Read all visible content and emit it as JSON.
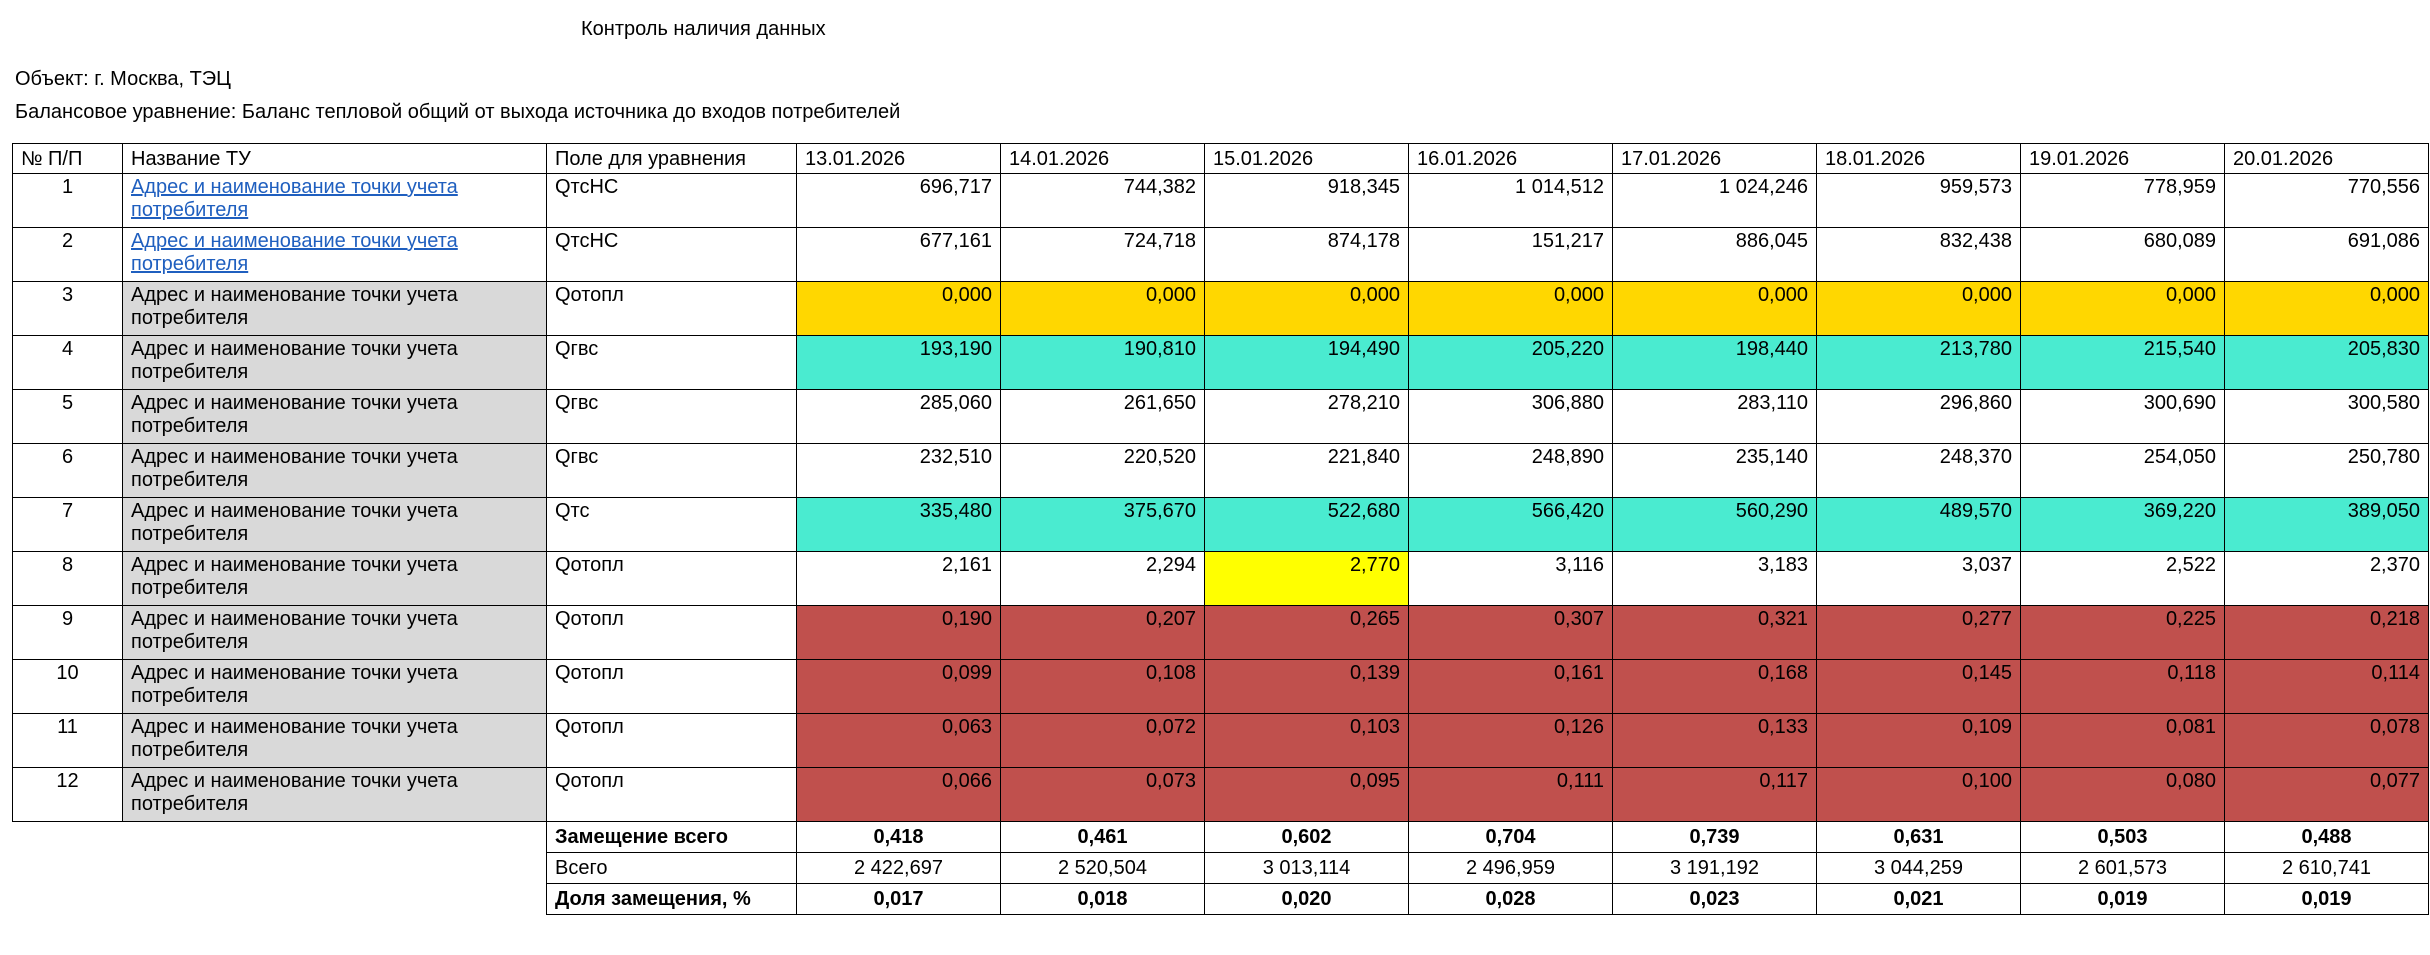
{
  "title": "Контроль наличия данных",
  "object_line": "Объект: г. Москва, ТЭЦ",
  "balance_line": "Балансовое уравнение: Баланс тепловой общий от выхода источника до входов потребителей",
  "columns": {
    "num": "№ П/П",
    "name": "Название ТУ",
    "field": "Поле для уравнения",
    "dates": [
      "13.01.2026",
      "14.01.2026",
      "15.01.2026",
      "16.01.2026",
      "17.01.2026",
      "18.01.2026",
      "19.01.2026",
      "20.01.2026"
    ]
  },
  "colors": {
    "orange": "#ffd700",
    "teal": "#4aebd0",
    "yellow": "#ffff00",
    "red": "#c0504d",
    "grey": "#d9d9d9",
    "link": "#1f5fbf"
  },
  "rows": [
    {
      "num": "1",
      "name": "Адрес и наименование точки учета потребителя",
      "link": true,
      "field": "QтсНС",
      "values": [
        "696,717",
        "744,382",
        "918,345",
        "1 014,512",
        "1 024,246",
        "959,573",
        "778,959",
        "770,556"
      ],
      "fills": [
        "",
        "",
        "",
        "",
        "",
        "",
        "",
        ""
      ]
    },
    {
      "num": "2",
      "name": "Адрес и наименование точки учета потребителя",
      "link": true,
      "field": "QтсНС",
      "values": [
        "677,161",
        "724,718",
        "874,178",
        "151,217",
        "886,045",
        "832,438",
        "680,089",
        "691,086"
      ],
      "fills": [
        "",
        "",
        "",
        "",
        "",
        "",
        "",
        ""
      ]
    },
    {
      "num": "3",
      "name": "Адрес и наименование точки учета потребителя",
      "link": false,
      "field": "Qотопл",
      "values": [
        "0,000",
        "0,000",
        "0,000",
        "0,000",
        "0,000",
        "0,000",
        "0,000",
        "0,000"
      ],
      "fills": [
        "orange",
        "orange",
        "orange",
        "orange",
        "orange",
        "orange",
        "orange",
        "orange"
      ]
    },
    {
      "num": "4",
      "name": "Адрес и наименование точки учета потребителя",
      "link": false,
      "field": "Qгвс",
      "values": [
        "193,190",
        "190,810",
        "194,490",
        "205,220",
        "198,440",
        "213,780",
        "215,540",
        "205,830"
      ],
      "fills": [
        "teal",
        "teal",
        "teal",
        "teal",
        "teal",
        "teal",
        "teal",
        "teal"
      ]
    },
    {
      "num": "5",
      "name": "Адрес и наименование точки учета потребителя",
      "link": false,
      "field": "Qгвс",
      "values": [
        "285,060",
        "261,650",
        "278,210",
        "306,880",
        "283,110",
        "296,860",
        "300,690",
        "300,580"
      ],
      "fills": [
        "",
        "",
        "",
        "",
        "",
        "",
        "",
        ""
      ]
    },
    {
      "num": "6",
      "name": "Адрес и наименование точки учета потребителя",
      "link": false,
      "field": "Qгвс",
      "values": [
        "232,510",
        "220,520",
        "221,840",
        "248,890",
        "235,140",
        "248,370",
        "254,050",
        "250,780"
      ],
      "fills": [
        "",
        "",
        "",
        "",
        "",
        "",
        "",
        ""
      ]
    },
    {
      "num": "7",
      "name": "Адрес и наименование точки учета потребителя",
      "link": false,
      "field": "Qтс",
      "values": [
        "335,480",
        "375,670",
        "522,680",
        "566,420",
        "560,290",
        "489,570",
        "369,220",
        "389,050"
      ],
      "fills": [
        "teal",
        "teal",
        "teal",
        "teal",
        "teal",
        "teal",
        "teal",
        "teal"
      ]
    },
    {
      "num": "8",
      "name": "Адрес и наименование точки учета потребителя",
      "link": false,
      "field": "Qотопл",
      "values": [
        "2,161",
        "2,294",
        "2,770",
        "3,116",
        "3,183",
        "3,037",
        "2,522",
        "2,370"
      ],
      "fills": [
        "",
        "",
        "yellow",
        "",
        "",
        "",
        "",
        ""
      ]
    },
    {
      "num": "9",
      "name": "Адрес и наименование точки учета потребителя",
      "link": false,
      "field": "Qотопл",
      "values": [
        "0,190",
        "0,207",
        "0,265",
        "0,307",
        "0,321",
        "0,277",
        "0,225",
        "0,218"
      ],
      "fills": [
        "red",
        "red",
        "red",
        "red",
        "red",
        "red",
        "red",
        "red"
      ]
    },
    {
      "num": "10",
      "name": "Адрес и наименование точки учета потребителя",
      "link": false,
      "field": "Qотопл",
      "values": [
        "0,099",
        "0,108",
        "0,139",
        "0,161",
        "0,168",
        "0,145",
        "0,118",
        "0,114"
      ],
      "fills": [
        "red",
        "red",
        "red",
        "red",
        "red",
        "red",
        "red",
        "red"
      ]
    },
    {
      "num": "11",
      "name": "Адрес и наименование точки учета потребителя",
      "link": false,
      "field": "Qотопл",
      "values": [
        "0,063",
        "0,072",
        "0,103",
        "0,126",
        "0,133",
        "0,109",
        "0,081",
        "0,078"
      ],
      "fills": [
        "red",
        "red",
        "red",
        "red",
        "red",
        "red",
        "red",
        "red"
      ]
    },
    {
      "num": "12",
      "name": "Адрес и наименование точки учета потребителя",
      "link": false,
      "field": "Qотопл",
      "values": [
        "0,066",
        "0,073",
        "0,095",
        "0,111",
        "0,117",
        "0,100",
        "0,080",
        "0,077"
      ],
      "fills": [
        "red",
        "red",
        "red",
        "red",
        "red",
        "red",
        "red",
        "red"
      ]
    }
  ],
  "summary": [
    {
      "label": "Замещение всего",
      "bold": true,
      "values": [
        "0,418",
        "0,461",
        "0,602",
        "0,704",
        "0,739",
        "0,631",
        "0,503",
        "0,488"
      ]
    },
    {
      "label": "Всего",
      "bold": false,
      "values": [
        "2 422,697",
        "2 520,504",
        "3 013,114",
        "2 496,959",
        "3 191,192",
        "3 044,259",
        "2 601,573",
        "2 610,741"
      ]
    },
    {
      "label": "Доля замещения, %",
      "bold": true,
      "values": [
        "0,017",
        "0,018",
        "0,020",
        "0,028",
        "0,023",
        "0,021",
        "0,019",
        "0,019"
      ]
    }
  ]
}
